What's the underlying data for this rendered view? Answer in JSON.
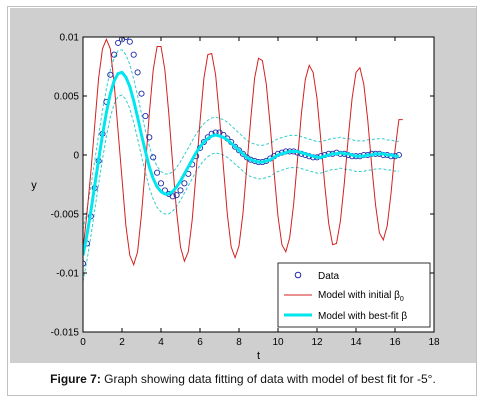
{
  "caption": {
    "label": "Figure 7:",
    "text": " Graph showing data fitting of data with model of best fit for -5°."
  },
  "chart_data": {
    "type": "scatter",
    "xlabel": "t",
    "ylabel": "y",
    "xlim": [
      0,
      18
    ],
    "ylim": [
      -0.015,
      0.01
    ],
    "grid": false,
    "legend_position": "bottom-right",
    "x_ticks": [
      "0",
      "2",
      "4",
      "6",
      "8",
      "10",
      "12",
      "14",
      "16",
      "18"
    ],
    "y_ticks": [
      "-0.015",
      "-0.01",
      "-0.005",
      "0",
      "0.005",
      "0.01"
    ],
    "x_tick_values": [
      0,
      2,
      4,
      6,
      8,
      10,
      12,
      14,
      16,
      18
    ],
    "y_tick_values": [
      -0.015,
      -0.01,
      -0.005,
      0,
      0.005,
      0.01
    ],
    "colors": {
      "data": "#1f2aa8",
      "initial": "#d42020",
      "best_fit": "#00e5ee",
      "bands": "#33cccc",
      "plot_bg": "#ffffff",
      "figure_bg": "#cfcfcf"
    },
    "series": [
      {
        "name": "Data",
        "marker": "circle",
        "x": [
          0.0,
          0.2,
          0.4,
          0.6,
          0.8,
          1.0,
          1.2,
          1.4,
          1.6,
          1.8,
          2.0,
          2.2,
          2.4,
          2.6,
          2.8,
          3.0,
          3.2,
          3.4,
          3.6,
          3.8,
          4.0,
          4.2,
          4.4,
          4.6,
          4.8,
          5.0,
          5.2,
          5.4,
          5.6,
          5.8,
          6.0,
          6.2,
          6.4,
          6.6,
          6.8,
          7.0,
          7.2,
          7.4,
          7.6,
          7.8,
          8.0,
          8.2,
          8.4,
          8.6,
          8.8,
          9.0,
          9.2,
          9.4,
          9.6,
          9.8,
          10.0,
          10.2,
          10.4,
          10.6,
          10.8,
          11.0,
          11.2,
          11.4,
          11.6,
          11.8,
          12.0,
          12.2,
          12.4,
          12.6,
          12.8,
          13.0,
          13.2,
          13.4,
          13.6,
          13.8,
          14.0,
          14.2,
          14.4,
          14.6,
          14.8,
          15.0,
          15.2,
          15.4,
          15.6,
          15.8,
          16.0,
          16.2
        ],
        "y": [
          -0.0092,
          -0.0075,
          -0.0052,
          -0.0028,
          -0.0005,
          0.0018,
          0.0045,
          0.0068,
          0.0085,
          0.0095,
          0.0098,
          0.01,
          0.0096,
          0.0085,
          0.007,
          0.0052,
          0.0033,
          0.0015,
          -0.0002,
          -0.0015,
          -0.0024,
          -0.003,
          -0.0033,
          -0.0035,
          -0.0034,
          -0.003,
          -0.0024,
          -0.0016,
          -0.0008,
          -0.0001,
          0.0006,
          0.0011,
          0.0015,
          0.0018,
          0.0019,
          0.0019,
          0.0017,
          0.0014,
          0.0011,
          0.0007,
          0.0004,
          0.0001,
          -0.0002,
          -0.0004,
          -0.0005,
          -0.0006,
          -0.0006,
          -0.0005,
          -0.0003,
          -0.0001,
          0.0001,
          0.0002,
          0.0003,
          0.0003,
          0.0003,
          0.0002,
          0.0001,
          0.0,
          -0.0001,
          -0.0002,
          -0.0002,
          -0.0001,
          0.0,
          0.0001,
          0.0001,
          0.0002,
          0.0001,
          0.0001,
          0.0,
          -0.0001,
          -0.0001,
          -0.0001,
          0.0,
          0.0,
          0.0001,
          0.0001,
          0.0001,
          0.0,
          0.0,
          -0.0001,
          -0.0001,
          0.0
        ]
      },
      {
        "name": "Model with initial β0",
        "style": "line",
        "x": [
          0.0,
          0.2,
          0.4,
          0.6,
          0.8,
          1.0,
          1.2,
          1.4,
          1.6,
          1.8,
          2.0,
          2.2,
          2.4,
          2.6,
          2.8,
          3.0,
          3.2,
          3.4,
          3.6,
          3.8,
          4.0,
          4.2,
          4.4,
          4.6,
          4.8,
          5.0,
          5.2,
          5.4,
          5.6,
          5.8,
          6.0,
          6.2,
          6.4,
          6.6,
          6.8,
          7.0,
          7.2,
          7.4,
          7.6,
          7.8,
          8.0,
          8.2,
          8.4,
          8.6,
          8.8,
          9.0,
          9.2,
          9.4,
          9.6,
          9.8,
          10.0,
          10.2,
          10.4,
          10.6,
          10.8,
          11.0,
          11.2,
          11.4,
          11.6,
          11.8,
          12.0,
          12.2,
          12.4,
          12.6,
          12.8,
          13.0,
          13.2,
          13.4,
          13.6,
          13.8,
          14.0,
          14.2,
          14.4,
          14.6,
          14.8,
          15.0,
          15.2,
          15.4,
          15.6,
          15.8,
          16.0,
          16.2,
          16.4
        ],
        "y": [
          -0.008,
          -0.005,
          -0.0015,
          0.0025,
          0.0065,
          0.009,
          0.0098,
          0.009,
          0.006,
          0.002,
          -0.002,
          -0.006,
          -0.0085,
          -0.0093,
          -0.0082,
          -0.005,
          -0.001,
          0.0035,
          0.0072,
          0.0092,
          0.0092,
          0.0072,
          0.0035,
          -0.0008,
          -0.0048,
          -0.0078,
          -0.009,
          -0.0082,
          -0.0055,
          -0.0015,
          0.0028,
          0.0065,
          0.0085,
          0.0086,
          0.0068,
          0.0032,
          -0.001,
          -0.005,
          -0.0078,
          -0.0087,
          -0.0077,
          -0.005,
          -0.001,
          0.003,
          0.0065,
          0.0082,
          0.008,
          0.006,
          0.0025,
          -0.0015,
          -0.0052,
          -0.0076,
          -0.0082,
          -0.007,
          -0.0042,
          -0.0004,
          0.0035,
          0.0064,
          0.0076,
          0.007,
          0.0048,
          0.0012,
          -0.0026,
          -0.0058,
          -0.0076,
          -0.0075,
          -0.0056,
          -0.0024,
          0.0014,
          0.0048,
          0.007,
          0.0074,
          0.006,
          0.003,
          -0.0008,
          -0.0042,
          -0.0066,
          -0.0072,
          -0.006,
          -0.0032,
          0.0004,
          0.003,
          0.003
        ]
      },
      {
        "name": "Model with best-fit β",
        "style": "line",
        "x": [
          0.0,
          0.2,
          0.4,
          0.6,
          0.8,
          1.0,
          1.2,
          1.4,
          1.6,
          1.8,
          2.0,
          2.2,
          2.4,
          2.6,
          2.8,
          3.0,
          3.2,
          3.4,
          3.6,
          3.8,
          4.0,
          4.2,
          4.4,
          4.6,
          4.8,
          5.0,
          5.2,
          5.4,
          5.6,
          5.8,
          6.0,
          6.2,
          6.4,
          6.6,
          6.8,
          7.0,
          7.2,
          7.4,
          7.6,
          7.8,
          8.0,
          8.2,
          8.4,
          8.6,
          8.8,
          9.0,
          9.2,
          9.4,
          9.6,
          9.8,
          10.0,
          10.2,
          10.4,
          10.6,
          10.8,
          11.0,
          11.2,
          11.4,
          11.6,
          11.8,
          12.0,
          12.2,
          12.4,
          12.6,
          12.8,
          13.0,
          13.2,
          13.4,
          13.6,
          13.8,
          14.0,
          14.2,
          14.4,
          14.6,
          14.8,
          15.0,
          15.2,
          15.4,
          15.6,
          15.8,
          16.0,
          16.2
        ],
        "y": [
          -0.0085,
          -0.0068,
          -0.0048,
          -0.0026,
          -0.0004,
          0.0017,
          0.0036,
          0.0052,
          0.0063,
          0.0069,
          0.007,
          0.0066,
          0.0058,
          0.0046,
          0.0032,
          0.0017,
          0.0003,
          -0.001,
          -0.002,
          -0.0027,
          -0.0031,
          -0.0033,
          -0.0033,
          -0.0031,
          -0.0027,
          -0.0022,
          -0.0016,
          -0.001,
          -0.0004,
          0.0002,
          0.0007,
          0.0011,
          0.0014,
          0.0016,
          0.0017,
          0.0016,
          0.0015,
          0.0013,
          0.001,
          0.0007,
          0.0004,
          0.0001,
          -0.0002,
          -0.0004,
          -0.0005,
          -0.0006,
          -0.0006,
          -0.0005,
          -0.0004,
          -0.0002,
          0.0,
          0.0001,
          0.0002,
          0.0003,
          0.0003,
          0.0003,
          0.0002,
          0.0001,
          0.0,
          -0.0001,
          -0.0002,
          -0.0002,
          -0.0001,
          0.0,
          0.0001,
          0.0001,
          0.0002,
          0.0001,
          0.0001,
          0.0,
          -0.0001,
          -0.0001,
          -0.0001,
          0.0,
          0.0,
          0.0001,
          0.0001,
          0.0001,
          0.0,
          0.0,
          -0.0001,
          -0.0001
        ]
      }
    ],
    "legend": [
      "Data",
      "Model with initial β",
      "0",
      "Model with best-fit β"
    ]
  }
}
